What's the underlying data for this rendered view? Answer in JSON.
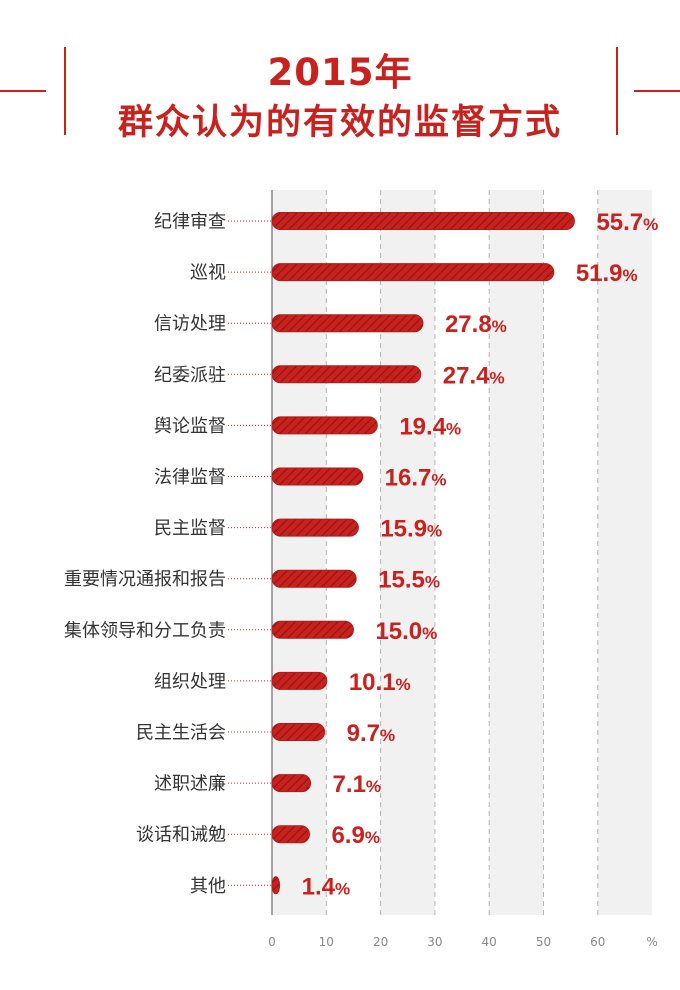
{
  "header": {
    "title_line1": "2015年",
    "title_line2": "群众认为的有效的监督方式"
  },
  "colors": {
    "accent": "#c9211e",
    "bar_fill": "#c9211e",
    "bar_hatch": "#8e1412",
    "band_light": "#f1f1f1",
    "label_text": "#333333",
    "tick_text": "#888888"
  },
  "chart_data": {
    "type": "bar",
    "orientation": "horizontal",
    "title": "2015年 群众认为的有效的监督方式",
    "categories": [
      "纪律审查",
      "巡视",
      "信访处理",
      "纪委派驻",
      "舆论监督",
      "法律监督",
      "民主监督",
      "重要情况通报和报告",
      "集体领导和分工负责",
      "组织处理",
      "民主生活会",
      "述职述廉",
      "谈话和诫勉",
      "其他"
    ],
    "values": [
      55.7,
      51.9,
      27.8,
      27.4,
      19.4,
      16.7,
      15.9,
      15.5,
      15.0,
      10.1,
      9.7,
      7.1,
      6.9,
      1.4
    ],
    "value_labels": [
      "55.7%",
      "51.9%",
      "27.8%",
      "27.4%",
      "19.4%",
      "16.7%",
      "15.9%",
      "15.5%",
      "15.0%",
      "10.1%",
      "9.7%",
      "7.1%",
      "6.9%",
      "1.4%"
    ],
    "xticks": [
      "0",
      "10",
      "20",
      "30",
      "40",
      "50",
      "60",
      "%"
    ],
    "xlim": [
      0,
      70
    ],
    "grid": true,
    "grid_style": "dashed vertical gridlines with alternating shaded bands",
    "legend": "none"
  }
}
